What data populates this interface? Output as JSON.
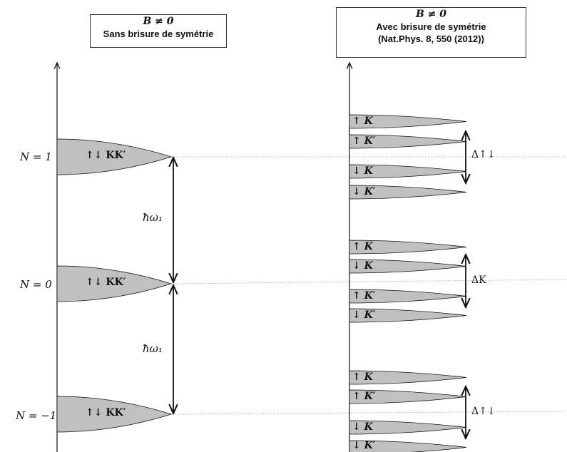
{
  "left_panel": {
    "title_formula": "B ≠ 0",
    "title_text": "Sans brisure de symétrie",
    "levels": [
      {
        "n_label": "N = 1",
        "state_label": "↑↓ KK′"
      },
      {
        "n_label": "N = 0",
        "state_label": "↑↓ KK′"
      },
      {
        "n_label": "N = −1",
        "state_label": "↑↓ KK′"
      }
    ],
    "spacing_label": "ħω₁"
  },
  "right_panel": {
    "title_formula": "B ≠ 0",
    "title_line2": "Avec brisure de symétrie",
    "title_line3": "(Nat.Phys. 8, 550 (2012))",
    "groups": [
      {
        "sublevels": [
          {
            "spin": "↑",
            "valley": "K"
          },
          {
            "spin": "↑",
            "valley": "K′"
          },
          {
            "spin": "↓",
            "valley": "K"
          },
          {
            "spin": "↓",
            "valley": "K′"
          }
        ],
        "gap_label": "Δ↑↓"
      },
      {
        "sublevels": [
          {
            "spin": "↑",
            "valley": "K"
          },
          {
            "spin": "↓",
            "valley": "K"
          },
          {
            "spin": "↑",
            "valley": "K′"
          },
          {
            "spin": "↓",
            "valley": "K′"
          }
        ],
        "gap_label": "ΔK"
      },
      {
        "sublevels": [
          {
            "spin": "↑",
            "valley": "K"
          },
          {
            "spin": "↑",
            "valley": "K′"
          },
          {
            "spin": "↓",
            "valley": "K"
          },
          {
            "spin": "↓",
            "valley": "K′"
          }
        ],
        "gap_label": "Δ↑↓"
      }
    ]
  },
  "colors": {
    "level_fill": "#c0c0c0",
    "stroke": "#111111",
    "dotted_line": "#aaaaaa"
  }
}
